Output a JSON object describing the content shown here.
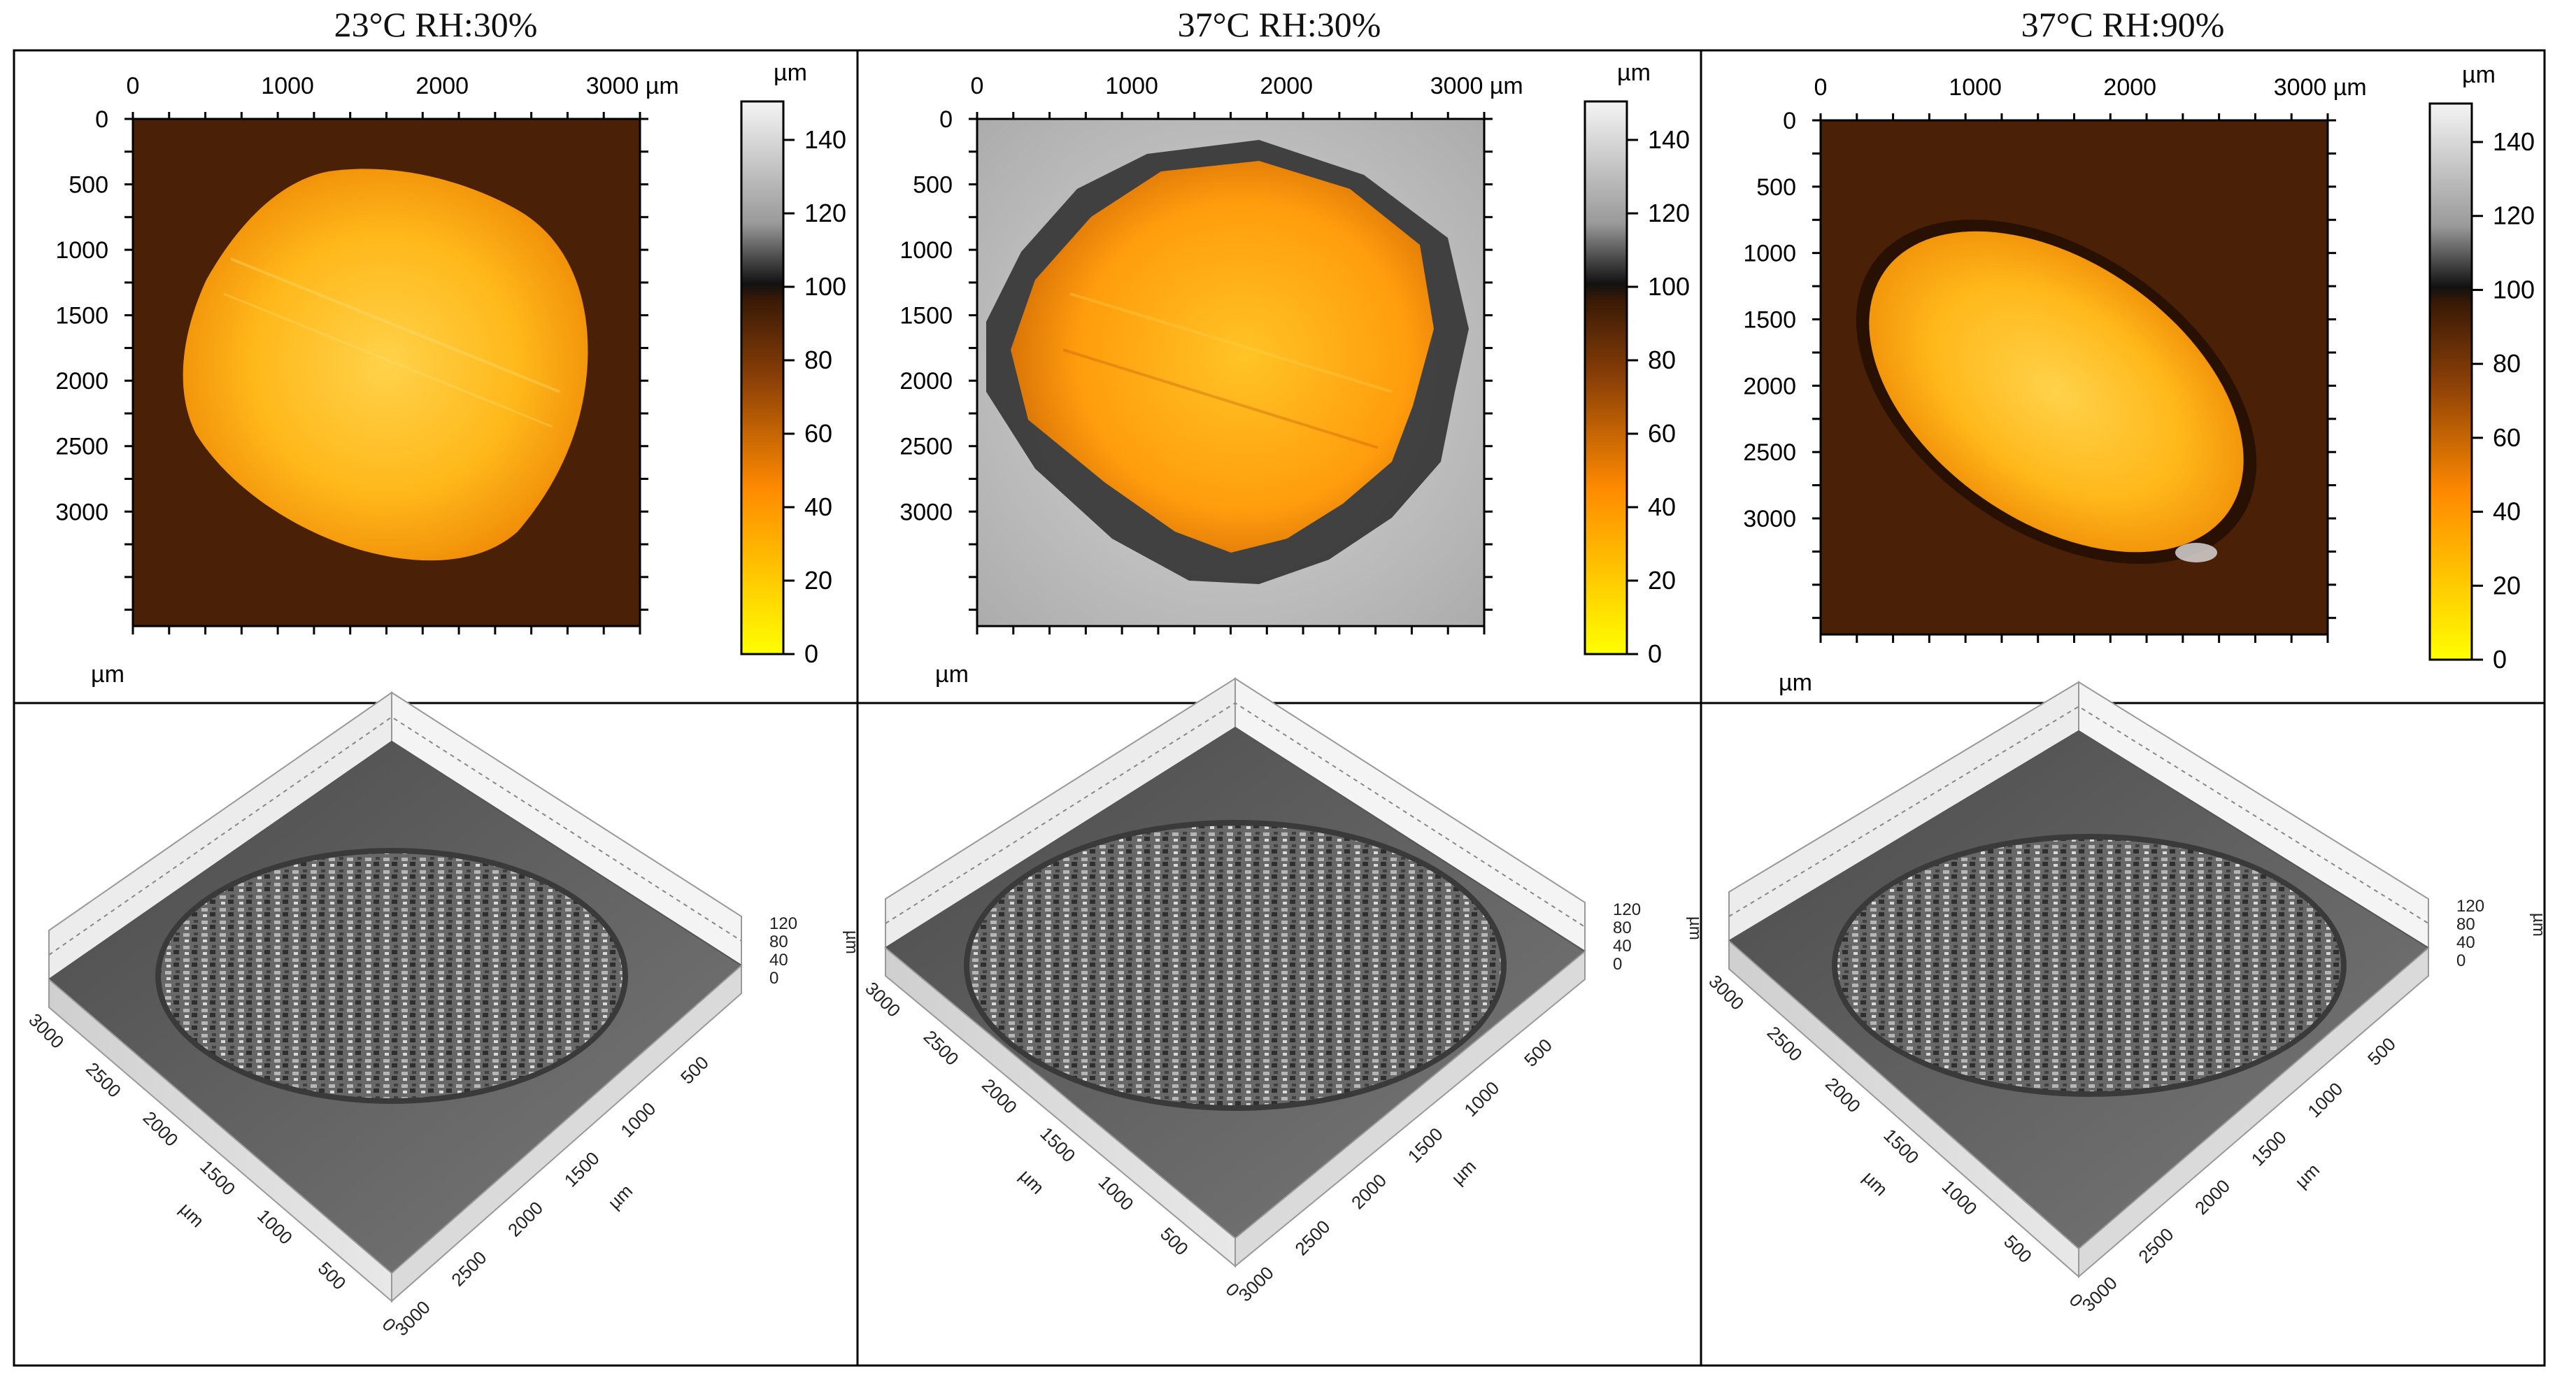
{
  "columns": [
    {
      "title": "23°C RH:30%"
    },
    {
      "title": "37°C RH:30%"
    },
    {
      "title": "37°C RH:90%"
    }
  ],
  "top_axis": {
    "x_ticks": [
      "0",
      "1000",
      "2000",
      "3000 µm"
    ],
    "y_ticks": [
      "0",
      "500",
      "1000",
      "1500",
      "2000",
      "2500",
      "3000"
    ],
    "unit": "µm"
  },
  "colorbar": {
    "unit": "µm",
    "ticks": [
      "140",
      "120",
      "100",
      "80",
      "60",
      "40",
      "20",
      "0"
    ]
  },
  "bottom_axis": {
    "z_ticks": [
      "120",
      "80",
      "40",
      "0"
    ],
    "y_ticks": [
      "3000",
      "2500",
      "2000",
      "1500",
      "1000",
      "500",
      "0"
    ],
    "x_ticks": [
      "500",
      "1000",
      "1500",
      "2000",
      "2500",
      "3000"
    ],
    "unit": "µm"
  },
  "colors": {
    "map_background": "#4a2006",
    "map_background_grey": "#b8b8b8",
    "specimen_hot": "#ffc21a",
    "specimen_edge": "#e07a05",
    "border": "#000000"
  }
}
